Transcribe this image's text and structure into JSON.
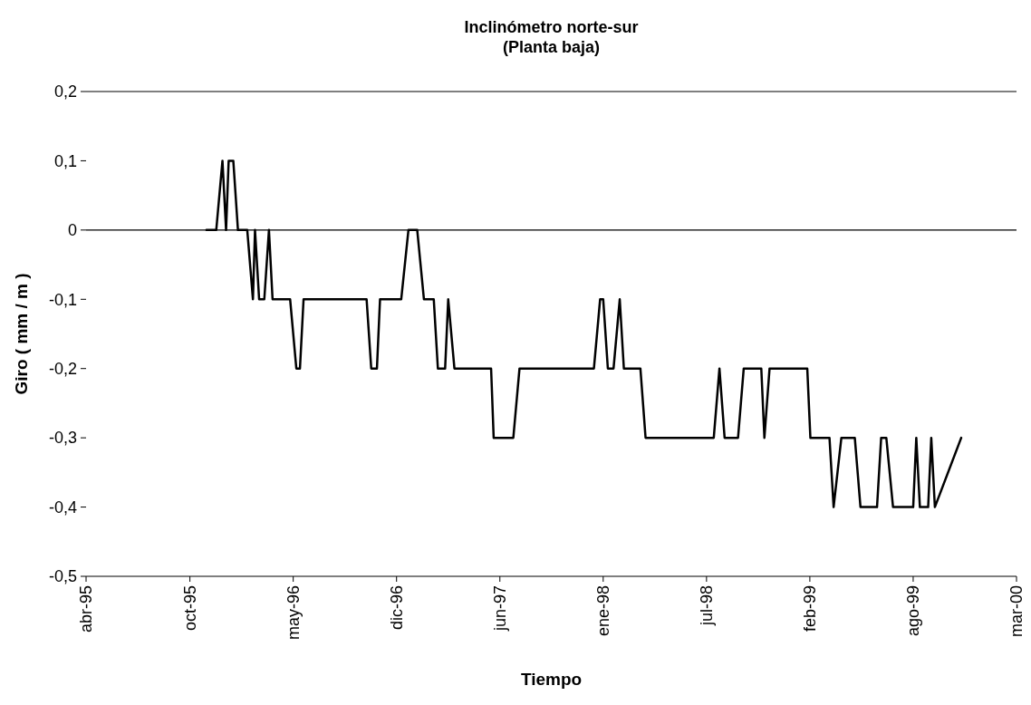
{
  "chart_data": {
    "type": "line",
    "title": "Inclinómetro norte-sur\n(Planta baja)",
    "xlabel": "Tiempo",
    "ylabel": "Giro ( mm / m )",
    "x": [
      "1995-12-01",
      "1995-12-20",
      "1996-01-01",
      "1996-01-08",
      "1996-01-13",
      "1996-01-22",
      "1996-01-31",
      "1996-02-18",
      "1996-02-29",
      "1996-03-04",
      "1996-03-12",
      "1996-03-22",
      "1996-03-31",
      "1996-04-07",
      "1996-05-11",
      "1996-05-23",
      "1996-05-30",
      "1996-06-06",
      "1996-10-06",
      "1996-10-15",
      "1996-10-26",
      "1996-11-01",
      "1996-12-12",
      "1996-12-26",
      "1997-01-12",
      "1997-01-25",
      "1997-02-13",
      "1997-02-21",
      "1997-03-07",
      "1997-03-13",
      "1997-03-25",
      "1997-06-04",
      "1997-06-09",
      "1997-07-17",
      "1997-07-29",
      "1997-12-20",
      "1998-01-01",
      "1998-01-07",
      "1998-01-16",
      "1998-01-27",
      "1998-02-08",
      "1998-02-16",
      "1998-03-20",
      "1998-03-30",
      "1998-08-09",
      "1998-08-20",
      "1998-08-30",
      "1998-09-25",
      "1998-10-06",
      "1998-11-09",
      "1998-11-15",
      "1998-11-25",
      "1999-02-06",
      "1999-02-12",
      "1999-03-21",
      "1999-03-29",
      "1999-04-13",
      "1999-05-09",
      "1999-05-20",
      "1999-06-21",
      "1999-06-29",
      "1999-07-09",
      "1999-07-22",
      "1999-08-30",
      "1999-09-05",
      "1999-09-12",
      "1999-09-28",
      "1999-10-04",
      "1999-10-11",
      "1999-12-01"
    ],
    "series": [
      {
        "color": "#000000",
        "values": [
          0,
          0,
          0.1,
          0,
          0.1,
          0.1,
          0,
          0,
          -0.1,
          0,
          -0.1,
          -0.1,
          0,
          -0.1,
          -0.1,
          -0.2,
          -0.2,
          -0.1,
          -0.1,
          -0.2,
          -0.2,
          -0.1,
          -0.1,
          0,
          0,
          -0.1,
          -0.1,
          -0.2,
          -0.2,
          -0.1,
          -0.2,
          -0.2,
          -0.3,
          -0.3,
          -0.2,
          -0.2,
          -0.1,
          -0.1,
          -0.2,
          -0.2,
          -0.1,
          -0.2,
          -0.2,
          -0.3,
          -0.3,
          -0.2,
          -0.3,
          -0.3,
          -0.2,
          -0.2,
          -0.3,
          -0.2,
          -0.2,
          -0.3,
          -0.3,
          -0.4,
          -0.3,
          -0.3,
          -0.4,
          -0.4,
          -0.3,
          -0.3,
          -0.4,
          -0.4,
          -0.3,
          -0.4,
          -0.4,
          -0.3,
          -0.4,
          -0.3
        ]
      }
    ],
    "xlim": [
      "1995-04-12",
      "2000-03-17"
    ],
    "xticks": [
      {
        "value": "1995-04-12",
        "label": "abr-95"
      },
      {
        "value": "1995-10-30",
        "label": "oct-95"
      },
      {
        "value": "1996-05-17",
        "label": "may-96"
      },
      {
        "value": "1996-12-03",
        "label": "dic-96"
      },
      {
        "value": "1997-06-21",
        "label": "jun-97"
      },
      {
        "value": "1998-01-07",
        "label": "ene-98"
      },
      {
        "value": "1998-07-26",
        "label": "jul-98"
      },
      {
        "value": "1999-02-11",
        "label": "feb-99"
      },
      {
        "value": "1999-08-30",
        "label": "ago-99"
      },
      {
        "value": "2000-03-17",
        "label": "mar-00"
      }
    ],
    "ylim": [
      -0.5,
      0.2
    ],
    "yticks": [
      {
        "value": 0.2,
        "label": "0,2"
      },
      {
        "value": 0.1,
        "label": "0,1"
      },
      {
        "value": 0,
        "label": "0"
      },
      {
        "value": -0.1,
        "label": "-0,1"
      },
      {
        "value": -0.2,
        "label": "-0,2"
      },
      {
        "value": -0.3,
        "label": "-0,3"
      },
      {
        "value": -0.4,
        "label": "-0,4"
      },
      {
        "value": -0.5,
        "label": "-0,5"
      }
    ],
    "ref_lines": [
      {
        "axis": "y",
        "value": 0,
        "color": "#000000"
      }
    ],
    "grid": false,
    "marker": "none",
    "line_style": "solid"
  }
}
